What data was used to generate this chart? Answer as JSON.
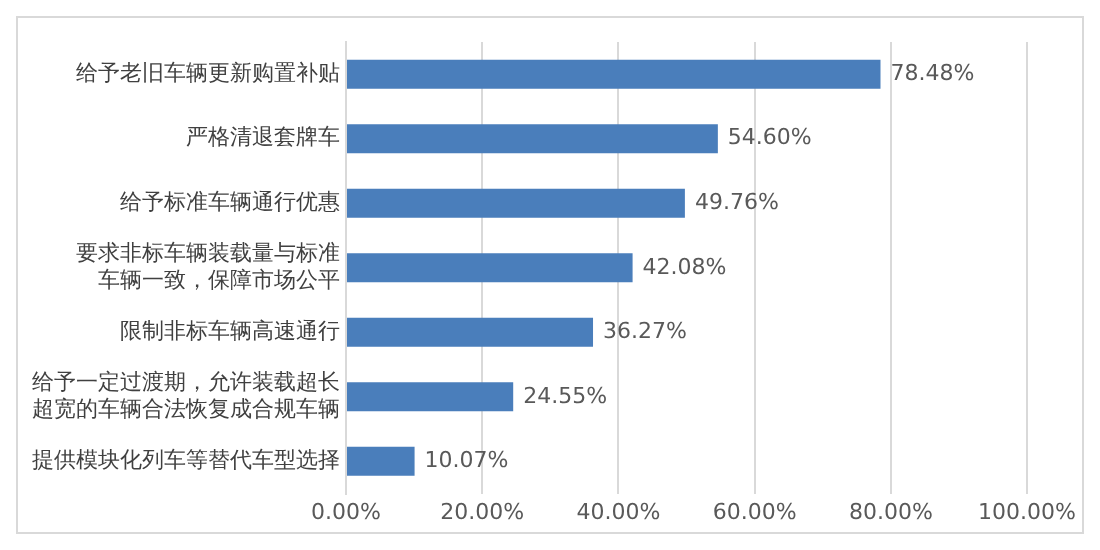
{
  "chart_data": {
    "type": "bar",
    "orientation": "horizontal",
    "categories": [
      "给予老旧车辆更新购置补贴",
      "严格清退套牌车",
      "给予标准车辆通行优惠",
      "要求非标车辆装载量与标准车辆一致，保障市场公平",
      "限制非标车辆高速通行",
      "给予一定过渡期，允许装载超长超宽的车辆合法恢复成合规车辆",
      "提供模块化列车等替代车型选择"
    ],
    "values": [
      78.48,
      54.6,
      49.76,
      42.08,
      36.27,
      24.55,
      10.07
    ],
    "value_labels": [
      "78.48%",
      "54.60%",
      "49.76%",
      "42.08%",
      "36.27%",
      "24.55%",
      "10.07%"
    ],
    "color": "#4a7ebb",
    "xlim": [
      0,
      100
    ],
    "xticks": [
      {
        "value": 0,
        "label": "0.00%"
      },
      {
        "value": 20,
        "label": "20.00%"
      },
      {
        "value": 40,
        "label": "40.00%"
      },
      {
        "value": 60,
        "label": "60.00%"
      },
      {
        "value": 80,
        "label": "80.00%"
      },
      {
        "value": 100,
        "label": "100.00%"
      }
    ],
    "grid": "x",
    "legend": false
  }
}
